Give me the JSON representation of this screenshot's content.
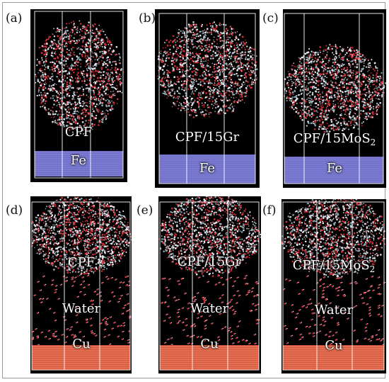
{
  "panels": [
    {
      "id": "a",
      "tag": "(a)",
      "kind": "fe",
      "composite": "CPF",
      "sub": "",
      "surface": "Fe"
    },
    {
      "id": "b",
      "tag": "(b)",
      "kind": "fe",
      "composite": "CPF/15Gr",
      "sub": "",
      "surface": "Fe"
    },
    {
      "id": "c",
      "tag": "(c)",
      "kind": "fe",
      "composite": "CPF/15MoS",
      "sub": "2",
      "surface": "Fe"
    },
    {
      "id": "d",
      "tag": "(d)",
      "kind": "cu",
      "composite": "CPF",
      "sub": "",
      "water": "Water",
      "surface": "Cu"
    },
    {
      "id": "e",
      "tag": "(e)",
      "kind": "cu",
      "composite": "CPF/15Gr",
      "sub": "",
      "water": "Water",
      "surface": "Cu"
    },
    {
      "id": "f",
      "tag": "(f)",
      "kind": "cu",
      "composite": "CPF/15MoS",
      "sub": "2",
      "water": "Water",
      "surface": "Cu"
    }
  ],
  "colors": {
    "background": "#000000",
    "fe_slab": "#6f6fc7",
    "cu_slab": "#d8573a",
    "oxygen": "#d0313a",
    "hydrogen": "#e8e8f0",
    "carbon": "#8fa6ad",
    "box_line": "#ffffff"
  }
}
